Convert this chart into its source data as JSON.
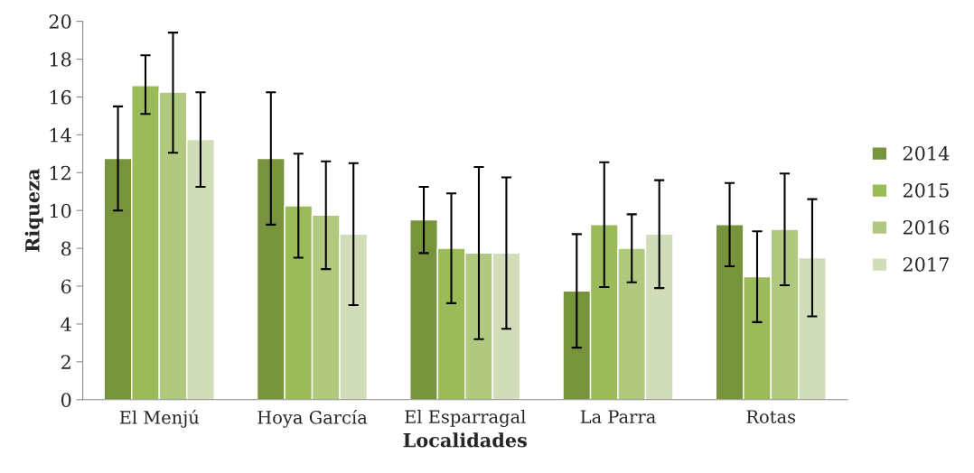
{
  "chart_data": {
    "type": "bar",
    "xlabel": "Localidades",
    "ylabel": "Riqueza",
    "categories": [
      "El Menjú",
      "Hoya García",
      "El Esparragal",
      "La Parra",
      "Rotas"
    ],
    "series": [
      {
        "name": "2014",
        "color": "#77933c",
        "values": [
          12.75,
          12.75,
          9.5,
          5.75,
          9.25
        ],
        "errors": [
          [
            10.0,
            15.5
          ],
          [
            9.25,
            16.25
          ],
          [
            7.75,
            11.25
          ],
          [
            2.75,
            8.75
          ],
          [
            7.05,
            11.45
          ]
        ]
      },
      {
        "name": "2015",
        "color": "#9bbb59",
        "values": [
          16.6,
          10.25,
          8.0,
          9.25,
          6.5
        ],
        "errors": [
          [
            15.1,
            18.2
          ],
          [
            7.5,
            13.0
          ],
          [
            5.1,
            10.9
          ],
          [
            5.95,
            12.55
          ],
          [
            4.1,
            8.9
          ]
        ]
      },
      {
        "name": "2016",
        "color": "#b0c97f",
        "values": [
          16.25,
          9.75,
          7.75,
          8.0,
          9.0
        ],
        "errors": [
          [
            13.05,
            19.4
          ],
          [
            6.9,
            12.6
          ],
          [
            3.2,
            12.3
          ],
          [
            6.2,
            9.8
          ],
          [
            6.05,
            11.95
          ]
        ]
      },
      {
        "name": "2017",
        "color": "#d1ddb8",
        "values": [
          13.75,
          8.75,
          7.75,
          8.75,
          7.5
        ],
        "errors": [
          [
            11.25,
            16.25
          ],
          [
            5.0,
            12.5
          ],
          [
            3.75,
            11.75
          ],
          [
            5.9,
            11.6
          ],
          [
            4.4,
            10.6
          ]
        ]
      }
    ],
    "ylim": [
      0,
      20
    ],
    "yticks": [
      0,
      2,
      4,
      6,
      8,
      10,
      12,
      14,
      16,
      18,
      20
    ],
    "grid": false,
    "legend": "right"
  }
}
